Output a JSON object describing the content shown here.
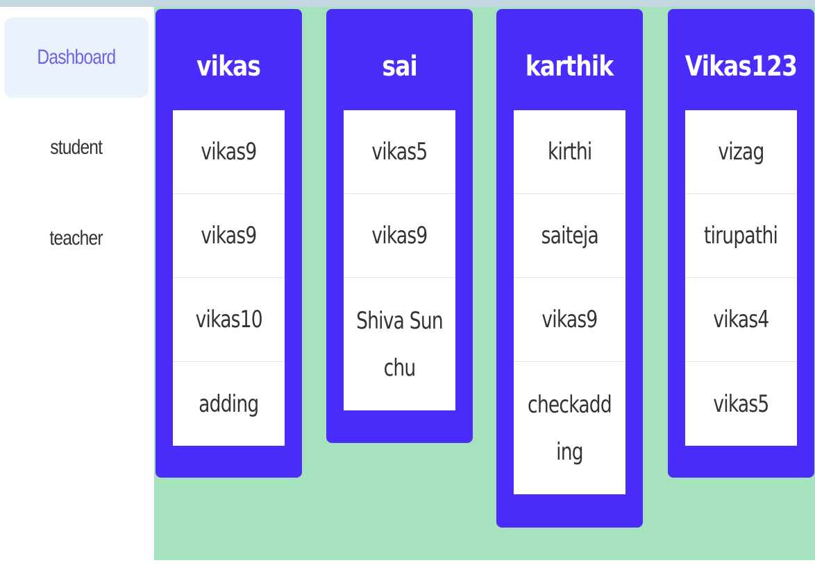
{
  "sidebar": {
    "items": [
      {
        "label": "Dashboard",
        "active": true
      },
      {
        "label": "student",
        "active": false
      },
      {
        "label": "teacher",
        "active": false
      }
    ]
  },
  "board": {
    "columns": [
      {
        "title": "vikas",
        "items": [
          "vikas9",
          "vikas9",
          "vikas10",
          "adding"
        ]
      },
      {
        "title": "sai",
        "items": [
          "vikas5",
          "vikas9",
          "Shiva Sunchu"
        ]
      },
      {
        "title": "karthik",
        "items": [
          "kirthi",
          "saiteja",
          "vikas9",
          "checkadding"
        ]
      },
      {
        "title": "Vikas123",
        "items": [
          "vizag",
          "tirupathi",
          "vikas4",
          "vikas5"
        ]
      }
    ]
  },
  "colors": {
    "card_bg": "#4a2dfb",
    "board_bg": "#a6e2bd",
    "active_nav_bg": "#eaf3fd",
    "active_nav_text": "#6d63e8",
    "topbar": "#c4d6df"
  }
}
